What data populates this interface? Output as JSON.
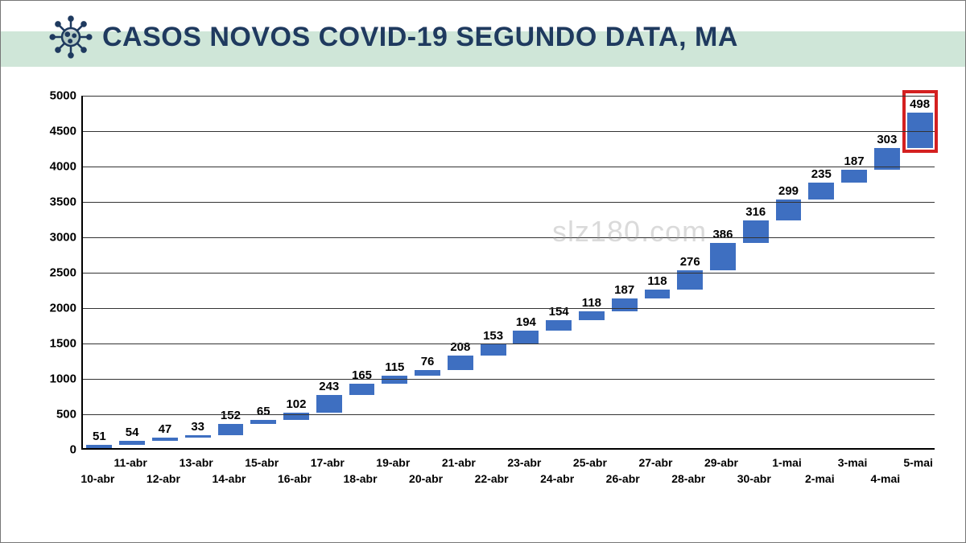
{
  "title": "CASOS NOVOS COVID-19 SEGUNDO DATA, MA",
  "watermark": "slz180.com",
  "chart": {
    "type": "bar",
    "background_color": "#ffffff",
    "grid_color": "#333333",
    "axis_color": "#000000",
    "title_color": "#1f3a5f",
    "title_band_color": "#cfe6d8",
    "bar_color": "#3e6fc1",
    "highlight_color": "#d42020",
    "label_fontsize": 15,
    "ylim": [
      0,
      5000
    ],
    "ytick_step": 500,
    "yticks": [
      0,
      500,
      1000,
      1500,
      2000,
      2500,
      3000,
      3500,
      4000,
      4500,
      5000
    ],
    "bar_width_ratio": 0.78,
    "categories": [
      "10-abr",
      "11-abr",
      "12-abr",
      "13-abr",
      "14-abr",
      "15-abr",
      "16-abr",
      "17-abr",
      "18-abr",
      "19-abr",
      "20-abr",
      "21-abr",
      "22-abr",
      "23-abr",
      "24-abr",
      "25-abr",
      "26-abr",
      "27-abr",
      "28-abr",
      "29-abr",
      "30-abr",
      "1-mai",
      "2-mai",
      "3-mai",
      "4-mai",
      "5-mai"
    ],
    "increments": [
      51,
      54,
      47,
      33,
      152,
      65,
      102,
      243,
      165,
      115,
      76,
      208,
      153,
      194,
      154,
      118,
      187,
      118,
      276,
      386,
      316,
      299,
      235,
      187,
      303,
      498
    ],
    "cumulative": [
      51,
      105,
      152,
      185,
      337,
      402,
      504,
      747,
      912,
      1027,
      1103,
      1311,
      1464,
      1658,
      1812,
      1930,
      2117,
      2235,
      2511,
      2897,
      3213,
      3512,
      3747,
      3934,
      4237,
      4735
    ],
    "highlight_index": 25
  }
}
